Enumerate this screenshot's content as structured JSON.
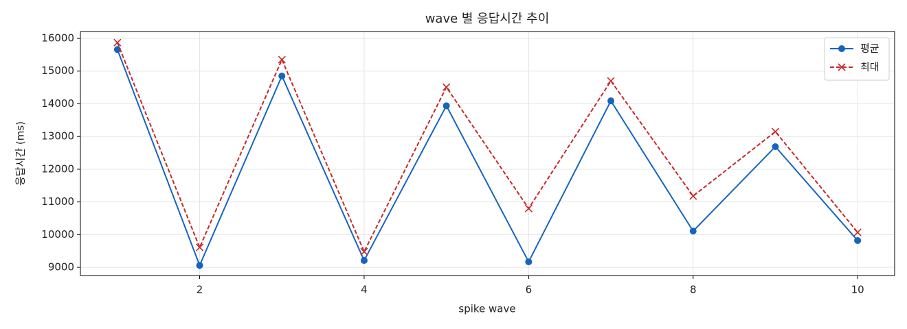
{
  "chart_data": {
    "type": "line",
    "title": "wave 별 응답시간 추이",
    "x_label": "spike wave",
    "y_label": "응답시간 (ms)",
    "x": [
      1,
      2,
      3,
      4,
      5,
      6,
      7,
      8,
      9,
      10
    ],
    "series": [
      {
        "name": "평균",
        "color": "#1565c0",
        "marker": "o",
        "linestyle": "solid",
        "values": [
          15660,
          9060,
          14850,
          9210,
          13940,
          9170,
          14090,
          10110,
          12690,
          9820
        ]
      },
      {
        "name": "최대",
        "color": "#c62828",
        "marker": "x",
        "linestyle": "dashed",
        "values": [
          15870,
          9610,
          15350,
          9480,
          14510,
          10800,
          14700,
          11180,
          13150,
          10070
        ]
      }
    ],
    "xlim": [
      0.55,
      10.45
    ],
    "ylim": [
      8750,
      16210
    ],
    "xticks": [
      2,
      4,
      6,
      8,
      10
    ],
    "yticks": [
      9000,
      10000,
      11000,
      12000,
      13000,
      14000,
      15000,
      16000
    ],
    "grid": true,
    "legend": "upper right"
  }
}
